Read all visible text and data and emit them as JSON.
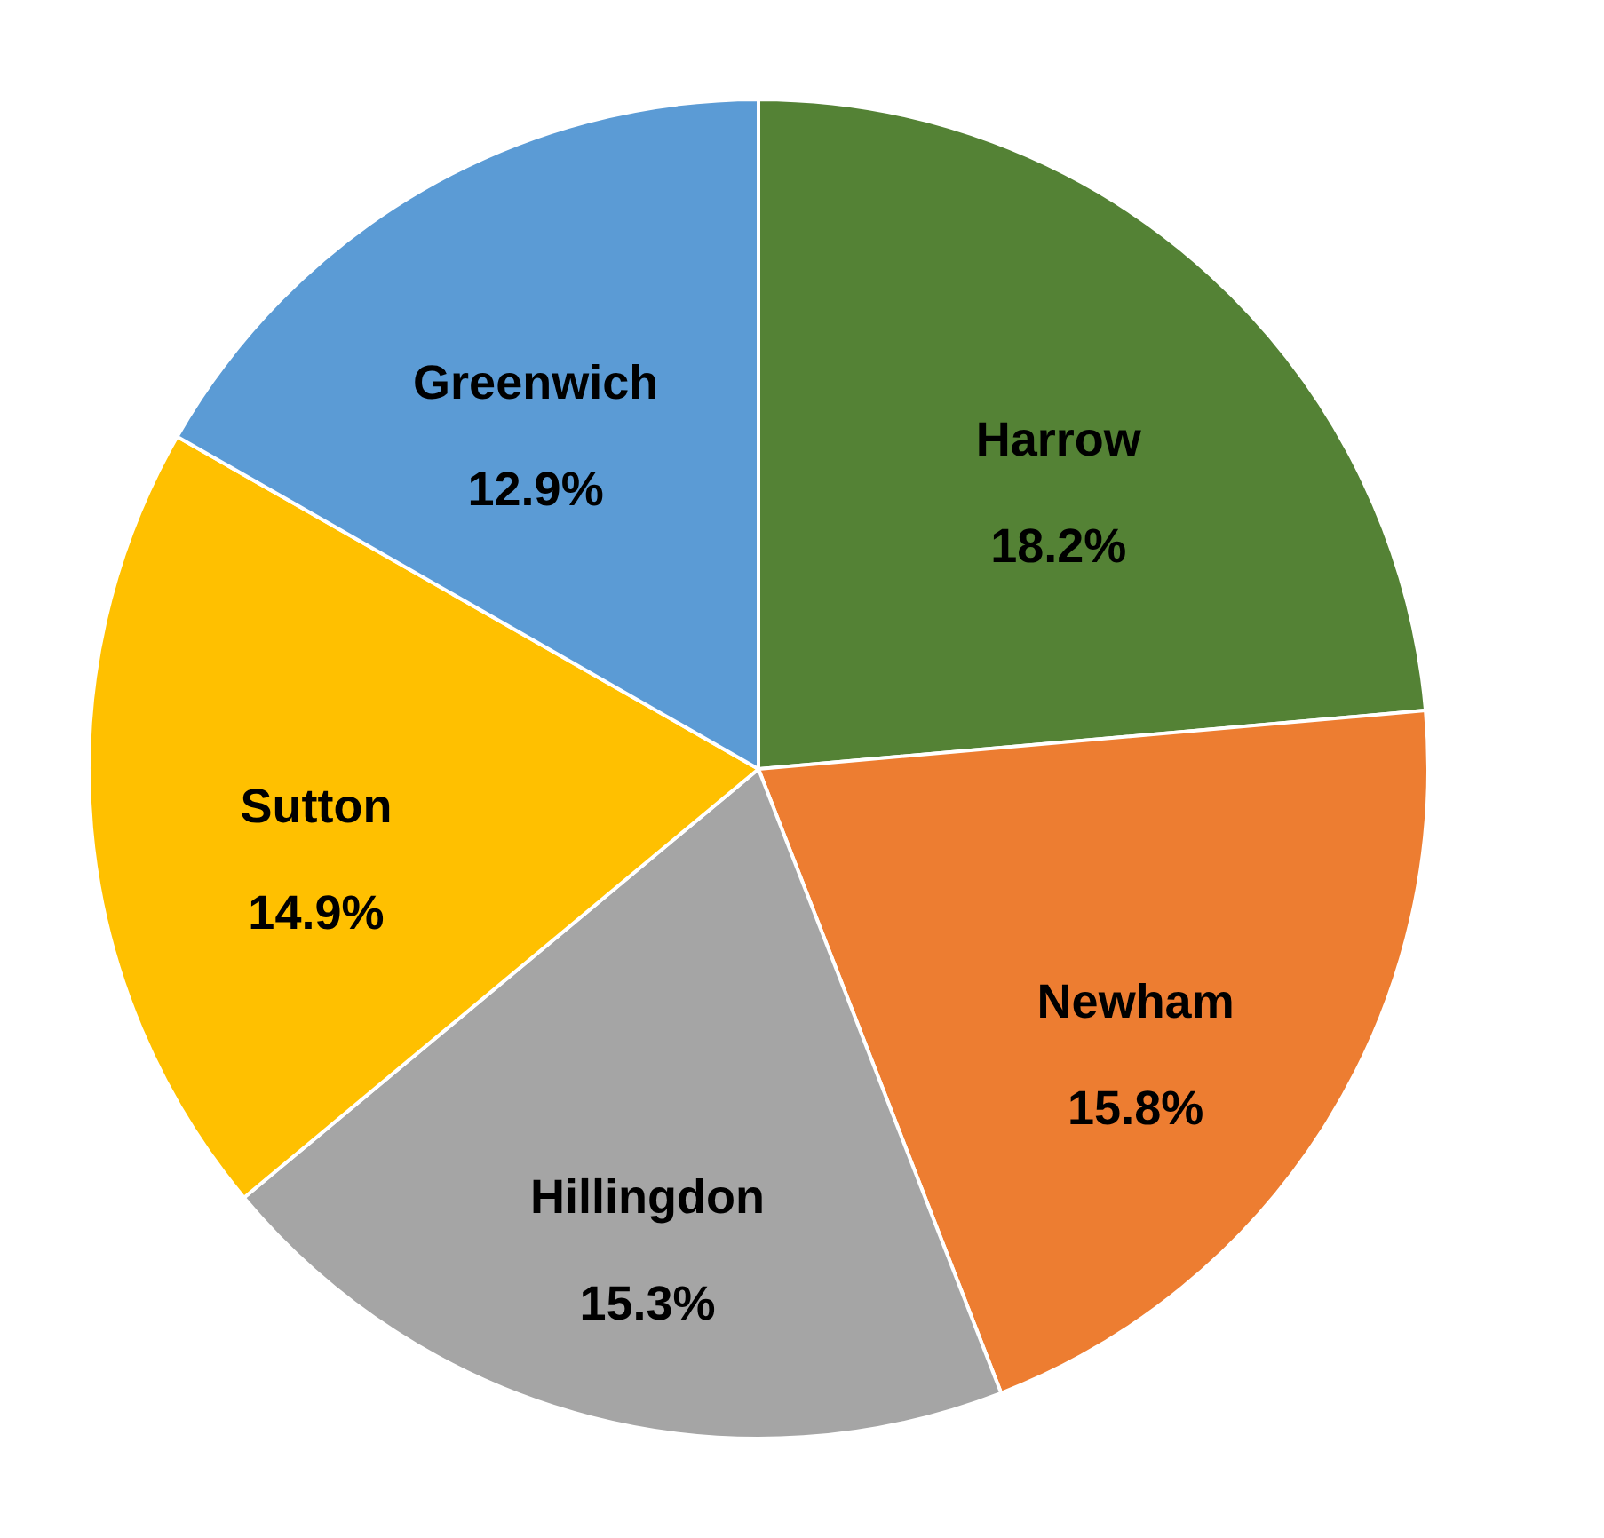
{
  "chart_data": {
    "type": "pie",
    "categories": [
      "Harrow",
      "Newham",
      "Hillingdon",
      "Sutton",
      "Greenwich"
    ],
    "values": [
      18.2,
      15.8,
      15.3,
      14.9,
      12.9
    ],
    "value_labels": [
      "18.2%",
      "15.8%",
      "15.3%",
      "14.9%",
      "12.9%"
    ],
    "colors": [
      "#548235",
      "#ed7d31",
      "#a5a5a5",
      "#ffc000",
      "#5b9bd5"
    ]
  }
}
